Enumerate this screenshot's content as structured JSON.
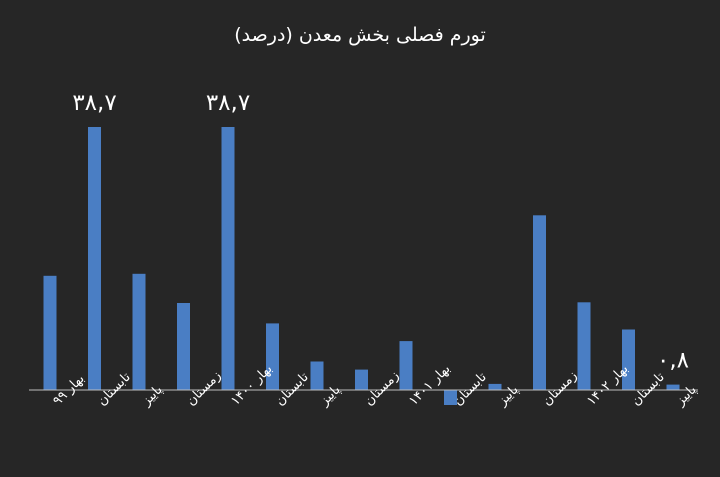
{
  "chart_data": {
    "type": "bar",
    "title": "تورم فصلی بخش معدن (درصد)",
    "xlabel": "",
    "ylabel": "",
    "categories": [
      "بهار ۹۹",
      "تابستان",
      "پاییز",
      "زمستان",
      "بهار ۱۴۰۰",
      "تابستان",
      "پاییز",
      "زمستان",
      "بهار ۱۴۰۱",
      "تابستان",
      "پاییز",
      "زمستان",
      "بهار ۱۴۰۲",
      "تابستان",
      "پاییز"
    ],
    "values": [
      16.8,
      38.7,
      17.1,
      12.8,
      38.7,
      9.8,
      4.2,
      3.0,
      7.2,
      -2.2,
      0.9,
      25.7,
      12.9,
      8.9,
      0.8
    ],
    "data_labels": [
      {
        "index": 1,
        "text": "۳۸,۷"
      },
      {
        "index": 4,
        "text": "۳۸,۷"
      },
      {
        "index": 14,
        "text": "۰,۸"
      }
    ],
    "ylim": [
      -2.2,
      38.7
    ],
    "grid": false,
    "legend": "none",
    "bar_color": "#4a7ec4",
    "axis_color": "#bfbfbf",
    "text_color": "#ffffff"
  }
}
